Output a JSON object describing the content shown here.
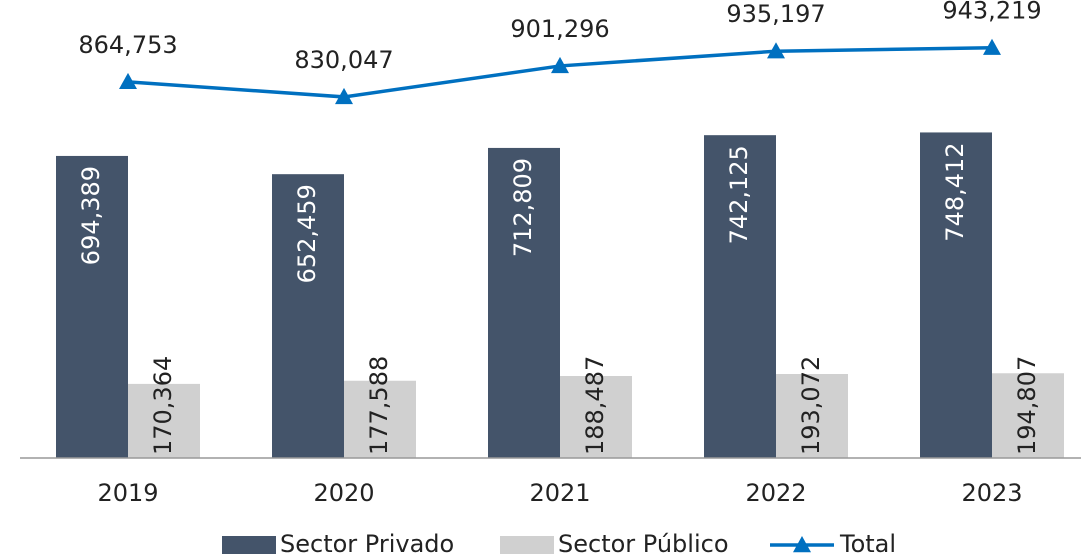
{
  "chart_data": {
    "type": "bar",
    "categories": [
      "2019",
      "2020",
      "2021",
      "2022",
      "2023"
    ],
    "ylim": [
      0,
      1000000
    ],
    "series": [
      {
        "name": "Sector Privado",
        "color": "#44546a",
        "values": [
          694389,
          652459,
          712809,
          742125,
          748412
        ],
        "value_labels": [
          "694,389",
          "652,459",
          "712,809",
          "742,125",
          "748,412"
        ]
      },
      {
        "name": "Sector Público",
        "color": "#d0d0d0",
        "values": [
          170364,
          177588,
          188487,
          193072,
          194807
        ],
        "value_labels": [
          "170,364",
          "177,588",
          "188,487",
          "193,072",
          "194,807"
        ]
      },
      {
        "name": "Total",
        "type": "line",
        "color": "#0070c0",
        "values": [
          864753,
          830047,
          901296,
          935197,
          943219
        ],
        "value_labels": [
          "864,753",
          "830,047",
          "901,296",
          "935,197",
          "943,219"
        ]
      }
    ]
  }
}
